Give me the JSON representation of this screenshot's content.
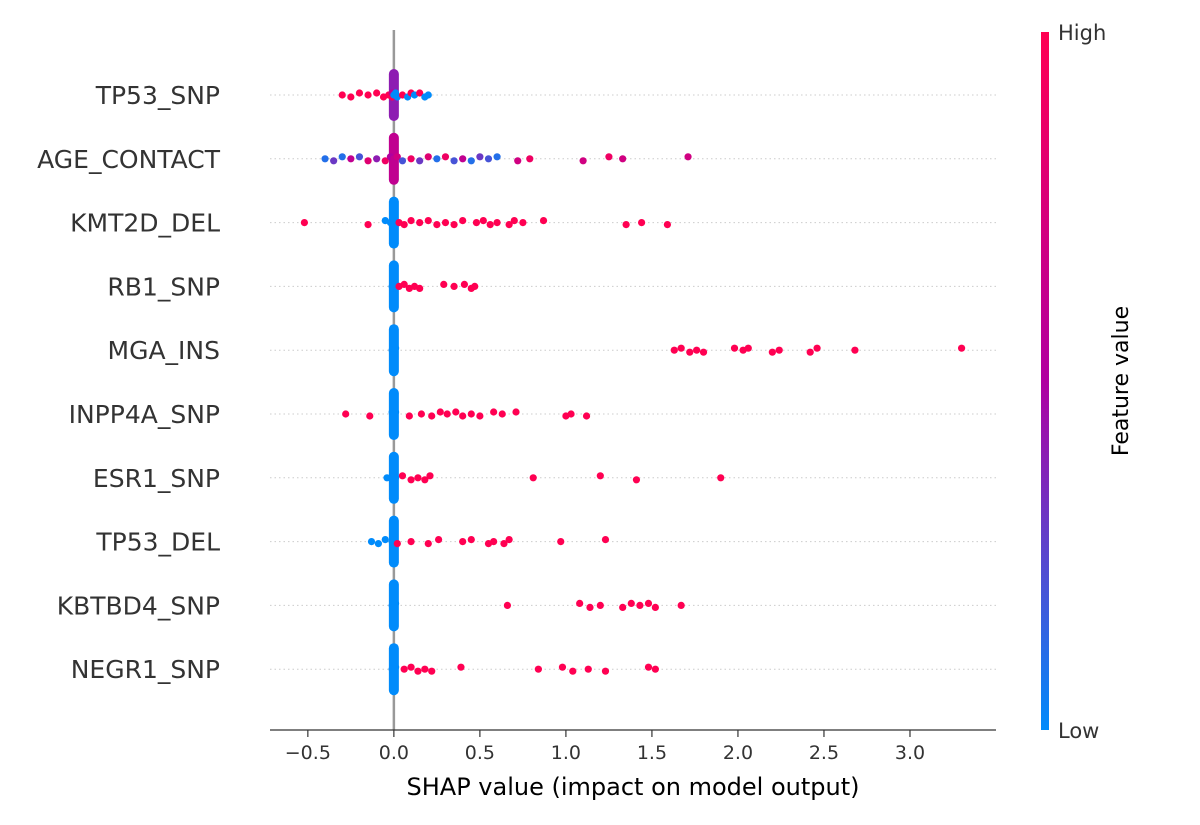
{
  "chart_data": {
    "type": "scatter",
    "subtype": "beeswarm",
    "title": "",
    "xlabel": "SHAP value (impact on model output)",
    "ylabel": "",
    "xlim": [
      -0.72,
      3.5
    ],
    "xticks": [
      -0.5,
      0.0,
      0.5,
      1.0,
      1.5,
      2.0,
      2.5,
      3.0
    ],
    "xtick_labels": [
      "−0.5",
      "0.0",
      "0.5",
      "1.0",
      "1.5",
      "2.0",
      "2.5",
      "3.0"
    ],
    "grid": false,
    "colors": {
      "low": "#008bfb",
      "mid": "#b000a0",
      "high": "#ff0052",
      "zero_line": "#999999",
      "row_line": "#cccccc"
    },
    "colorbar": {
      "label": "Feature value",
      "high_label": "High",
      "low_label": "Low"
    },
    "features": [
      {
        "name": "TP53_SNP",
        "points": [
          {
            "x": -0.3,
            "c": 1
          },
          {
            "x": -0.25,
            "c": 1
          },
          {
            "x": -0.2,
            "c": 1
          },
          {
            "x": -0.15,
            "c": 1
          },
          {
            "x": -0.1,
            "c": 1
          },
          {
            "x": -0.06,
            "c": 1
          },
          {
            "x": -0.03,
            "c": 1
          },
          {
            "x": -0.01,
            "c": 1
          },
          {
            "x": -0.01,
            "c": 0.6
          },
          {
            "x": 0.0,
            "c": 0
          },
          {
            "x": 0.01,
            "c": 0
          },
          {
            "x": 0.02,
            "c": 0
          },
          {
            "x": 0.05,
            "c": 1
          },
          {
            "x": 0.08,
            "c": 0
          },
          {
            "x": 0.1,
            "c": 1
          },
          {
            "x": 0.12,
            "c": 0
          },
          {
            "x": 0.15,
            "c": 1
          },
          {
            "x": 0.18,
            "c": 0
          },
          {
            "x": 0.2,
            "c": 0
          }
        ]
      },
      {
        "name": "AGE_CONTACT",
        "points": [
          {
            "x": -0.4,
            "c": 0.1
          },
          {
            "x": -0.35,
            "c": 0.3
          },
          {
            "x": -0.3,
            "c": 0.1
          },
          {
            "x": -0.25,
            "c": 0.6
          },
          {
            "x": -0.2,
            "c": 0.2
          },
          {
            "x": -0.15,
            "c": 0.8
          },
          {
            "x": -0.1,
            "c": 0.4
          },
          {
            "x": -0.05,
            "c": 0.9
          },
          {
            "x": -0.02,
            "c": 0.5
          },
          {
            "x": 0.0,
            "c": 0.6
          },
          {
            "x": 0.02,
            "c": 0.7
          },
          {
            "x": 0.05,
            "c": 0.2
          },
          {
            "x": 0.1,
            "c": 0.9
          },
          {
            "x": 0.15,
            "c": 0.3
          },
          {
            "x": 0.2,
            "c": 0.8
          },
          {
            "x": 0.25,
            "c": 0.1
          },
          {
            "x": 0.3,
            "c": 0.9
          },
          {
            "x": 0.35,
            "c": 0.2
          },
          {
            "x": 0.4,
            "c": 0.6
          },
          {
            "x": 0.45,
            "c": 0.1
          },
          {
            "x": 0.5,
            "c": 0.3
          },
          {
            "x": 0.55,
            "c": 0.2
          },
          {
            "x": 0.6,
            "c": 0.1
          },
          {
            "x": 0.72,
            "c": 0.7
          },
          {
            "x": 0.79,
            "c": 0.9
          },
          {
            "x": 1.1,
            "c": 0.7
          },
          {
            "x": 1.25,
            "c": 0.9
          },
          {
            "x": 1.33,
            "c": 0.7
          },
          {
            "x": 1.71,
            "c": 0.7
          }
        ]
      },
      {
        "name": "KMT2D_DEL",
        "points": [
          {
            "x": -0.52,
            "c": 1
          },
          {
            "x": -0.15,
            "c": 1
          },
          {
            "x": -0.05,
            "c": 0
          },
          {
            "x": -0.02,
            "c": 0
          },
          {
            "x": 0.0,
            "c": 0
          },
          {
            "x": 0.01,
            "c": 0
          },
          {
            "x": 0.03,
            "c": 1
          },
          {
            "x": 0.06,
            "c": 1
          },
          {
            "x": 0.1,
            "c": 1
          },
          {
            "x": 0.15,
            "c": 1
          },
          {
            "x": 0.2,
            "c": 1
          },
          {
            "x": 0.25,
            "c": 1
          },
          {
            "x": 0.3,
            "c": 1
          },
          {
            "x": 0.35,
            "c": 1
          },
          {
            "x": 0.4,
            "c": 1
          },
          {
            "x": 0.48,
            "c": 1
          },
          {
            "x": 0.52,
            "c": 1
          },
          {
            "x": 0.56,
            "c": 1
          },
          {
            "x": 0.6,
            "c": 1
          },
          {
            "x": 0.67,
            "c": 1
          },
          {
            "x": 0.7,
            "c": 1
          },
          {
            "x": 0.75,
            "c": 1
          },
          {
            "x": 0.87,
            "c": 1
          },
          {
            "x": 1.35,
            "c": 1
          },
          {
            "x": 1.44,
            "c": 1
          },
          {
            "x": 1.59,
            "c": 1
          }
        ]
      },
      {
        "name": "RB1_SNP",
        "points": [
          {
            "x": -0.01,
            "c": 0
          },
          {
            "x": 0.0,
            "c": 0
          },
          {
            "x": 0.01,
            "c": 0
          },
          {
            "x": 0.03,
            "c": 1
          },
          {
            "x": 0.06,
            "c": 1
          },
          {
            "x": 0.09,
            "c": 1
          },
          {
            "x": 0.12,
            "c": 1
          },
          {
            "x": 0.15,
            "c": 1
          },
          {
            "x": 0.29,
            "c": 1
          },
          {
            "x": 0.35,
            "c": 1
          },
          {
            "x": 0.41,
            "c": 1
          },
          {
            "x": 0.45,
            "c": 1
          },
          {
            "x": 0.47,
            "c": 1
          }
        ]
      },
      {
        "name": "MGA_INS",
        "points": [
          {
            "x": -0.01,
            "c": 0
          },
          {
            "x": 0.0,
            "c": 0
          },
          {
            "x": 0.01,
            "c": 0
          },
          {
            "x": 1.63,
            "c": 1
          },
          {
            "x": 1.67,
            "c": 1
          },
          {
            "x": 1.72,
            "c": 1
          },
          {
            "x": 1.76,
            "c": 1
          },
          {
            "x": 1.8,
            "c": 1
          },
          {
            "x": 1.98,
            "c": 1
          },
          {
            "x": 2.03,
            "c": 1
          },
          {
            "x": 2.06,
            "c": 1
          },
          {
            "x": 2.2,
            "c": 1
          },
          {
            "x": 2.24,
            "c": 1
          },
          {
            "x": 2.42,
            "c": 1
          },
          {
            "x": 2.46,
            "c": 1
          },
          {
            "x": 2.68,
            "c": 1
          },
          {
            "x": 3.3,
            "c": 1
          }
        ]
      },
      {
        "name": "INPP4A_SNP",
        "points": [
          {
            "x": -0.28,
            "c": 1
          },
          {
            "x": -0.14,
            "c": 1
          },
          {
            "x": -0.01,
            "c": 0
          },
          {
            "x": 0.0,
            "c": 0
          },
          {
            "x": 0.01,
            "c": 0
          },
          {
            "x": 0.09,
            "c": 1
          },
          {
            "x": 0.16,
            "c": 1
          },
          {
            "x": 0.22,
            "c": 1
          },
          {
            "x": 0.27,
            "c": 1
          },
          {
            "x": 0.31,
            "c": 1
          },
          {
            "x": 0.36,
            "c": 1
          },
          {
            "x": 0.4,
            "c": 1
          },
          {
            "x": 0.45,
            "c": 1
          },
          {
            "x": 0.5,
            "c": 1
          },
          {
            "x": 0.58,
            "c": 1
          },
          {
            "x": 0.63,
            "c": 1
          },
          {
            "x": 0.71,
            "c": 1
          },
          {
            "x": 1.0,
            "c": 1
          },
          {
            "x": 1.03,
            "c": 1
          },
          {
            "x": 1.12,
            "c": 1
          }
        ]
      },
      {
        "name": "ESR1_SNP",
        "points": [
          {
            "x": -0.04,
            "c": 0
          },
          {
            "x": -0.01,
            "c": 0
          },
          {
            "x": 0.0,
            "c": 0
          },
          {
            "x": 0.01,
            "c": 0
          },
          {
            "x": 0.05,
            "c": 1
          },
          {
            "x": 0.1,
            "c": 1
          },
          {
            "x": 0.14,
            "c": 1
          },
          {
            "x": 0.18,
            "c": 1
          },
          {
            "x": 0.21,
            "c": 1
          },
          {
            "x": 0.81,
            "c": 1
          },
          {
            "x": 1.2,
            "c": 1
          },
          {
            "x": 1.41,
            "c": 1
          },
          {
            "x": 1.9,
            "c": 1
          }
        ]
      },
      {
        "name": "TP53_DEL",
        "points": [
          {
            "x": -0.13,
            "c": 0
          },
          {
            "x": -0.09,
            "c": 0
          },
          {
            "x": -0.05,
            "c": 0
          },
          {
            "x": -0.01,
            "c": 0
          },
          {
            "x": 0.0,
            "c": 0
          },
          {
            "x": 0.02,
            "c": 1
          },
          {
            "x": 0.1,
            "c": 1
          },
          {
            "x": 0.2,
            "c": 1
          },
          {
            "x": 0.26,
            "c": 1
          },
          {
            "x": 0.4,
            "c": 1
          },
          {
            "x": 0.45,
            "c": 1
          },
          {
            "x": 0.55,
            "c": 1
          },
          {
            "x": 0.58,
            "c": 1
          },
          {
            "x": 0.64,
            "c": 1
          },
          {
            "x": 0.67,
            "c": 1
          },
          {
            "x": 0.97,
            "c": 1
          },
          {
            "x": 1.23,
            "c": 1
          }
        ]
      },
      {
        "name": "KBTBD4_SNP",
        "points": [
          {
            "x": -0.01,
            "c": 0
          },
          {
            "x": 0.0,
            "c": 0
          },
          {
            "x": 0.01,
            "c": 0
          },
          {
            "x": 0.66,
            "c": 1
          },
          {
            "x": 1.08,
            "c": 1
          },
          {
            "x": 1.14,
            "c": 1
          },
          {
            "x": 1.2,
            "c": 1
          },
          {
            "x": 1.33,
            "c": 1
          },
          {
            "x": 1.38,
            "c": 1
          },
          {
            "x": 1.43,
            "c": 1
          },
          {
            "x": 1.48,
            "c": 1
          },
          {
            "x": 1.52,
            "c": 1
          },
          {
            "x": 1.67,
            "c": 1
          }
        ]
      },
      {
        "name": "NEGR1_SNP",
        "points": [
          {
            "x": -0.01,
            "c": 0
          },
          {
            "x": 0.0,
            "c": 0
          },
          {
            "x": 0.01,
            "c": 0
          },
          {
            "x": 0.06,
            "c": 1
          },
          {
            "x": 0.1,
            "c": 1
          },
          {
            "x": 0.14,
            "c": 1
          },
          {
            "x": 0.18,
            "c": 1
          },
          {
            "x": 0.22,
            "c": 1
          },
          {
            "x": 0.39,
            "c": 1
          },
          {
            "x": 0.84,
            "c": 1
          },
          {
            "x": 0.98,
            "c": 1
          },
          {
            "x": 1.04,
            "c": 1
          },
          {
            "x": 1.13,
            "c": 1
          },
          {
            "x": 1.23,
            "c": 1
          },
          {
            "x": 1.48,
            "c": 1
          },
          {
            "x": 1.52,
            "c": 1
          }
        ]
      }
    ]
  }
}
